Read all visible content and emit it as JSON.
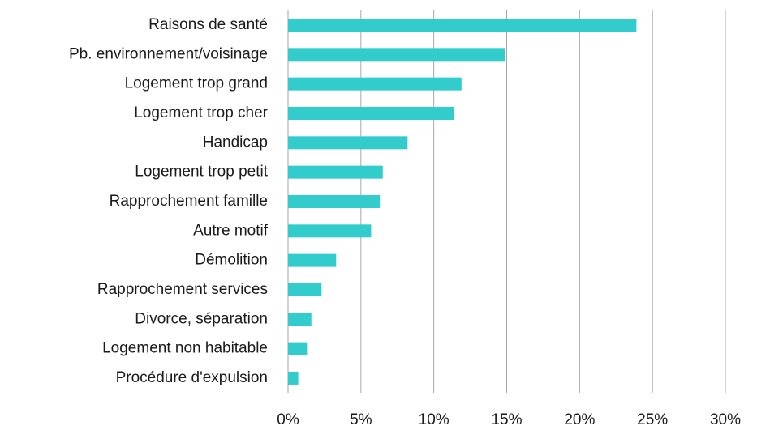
{
  "chart_data": {
    "type": "hbar",
    "categories": [
      "Raisons de santé",
      "Pb. environnement/voisinage",
      "Logement trop grand",
      "Logement trop cher",
      "Handicap",
      "Logement trop petit",
      "Rapprochement famille",
      "Autre motif",
      "Démolition",
      "Rapprochement services",
      "Divorce, séparation",
      "Logement non habitable",
      "Procédure d'expulsion"
    ],
    "values": [
      23.9,
      14.9,
      11.9,
      11.4,
      8.2,
      6.5,
      6.3,
      5.7,
      3.3,
      2.3,
      1.6,
      1.3,
      0.7
    ],
    "color": "#33cccc",
    "xlim": [
      0,
      30
    ],
    "xticks": [
      {
        "value": 0,
        "label": "0%"
      },
      {
        "value": 5,
        "label": "5%"
      },
      {
        "value": 10,
        "label": "10%"
      },
      {
        "value": 15,
        "label": "15%"
      },
      {
        "value": 20,
        "label": "20%"
      },
      {
        "value": 25,
        "label": "25%"
      },
      {
        "value": 30,
        "label": "30%"
      }
    ],
    "grid": true
  }
}
